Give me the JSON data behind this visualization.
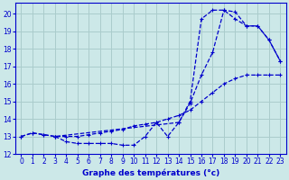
{
  "title": "Graphe des températures (°c)",
  "bg_color": "#cce8e8",
  "grid_color": "#aacccc",
  "line_color": "#0000cc",
  "xlim": [
    -0.5,
    23.5
  ],
  "ylim": [
    12,
    20.6
  ],
  "xticks": [
    0,
    1,
    2,
    3,
    4,
    5,
    6,
    7,
    8,
    9,
    10,
    11,
    12,
    13,
    14,
    15,
    16,
    17,
    18,
    19,
    20,
    21,
    22,
    23
  ],
  "yticks": [
    12,
    13,
    14,
    15,
    16,
    17,
    18,
    19,
    20
  ],
  "series1_x": [
    0,
    1,
    2,
    3,
    4,
    5,
    6,
    7,
    8,
    9,
    10,
    11,
    12,
    13,
    14,
    15,
    16,
    17,
    18,
    19,
    20,
    21,
    22,
    23
  ],
  "series1_y": [
    13.0,
    13.2,
    13.1,
    13.0,
    13.0,
    13.0,
    13.1,
    13.2,
    13.3,
    13.4,
    13.6,
    13.7,
    13.8,
    14.0,
    14.2,
    14.5,
    15.0,
    15.5,
    16.0,
    16.3,
    16.5,
    16.5,
    16.5,
    16.5
  ],
  "series2_x": [
    0,
    1,
    2,
    3,
    14,
    15,
    16,
    17,
    18,
    19,
    20,
    21,
    22,
    23
  ],
  "series2_y": [
    13.0,
    13.2,
    13.1,
    13.0,
    13.8,
    15.0,
    19.7,
    20.2,
    20.2,
    19.7,
    19.3,
    19.3,
    18.5,
    17.3
  ],
  "series3_x": [
    3,
    4,
    5,
    6,
    7,
    8,
    9,
    10,
    11,
    12,
    13,
    14,
    15,
    16,
    17,
    18,
    19,
    20,
    21,
    22,
    23
  ],
  "series3_y": [
    13.0,
    12.7,
    12.6,
    12.6,
    12.6,
    12.6,
    12.5,
    12.5,
    13.0,
    13.8,
    13.0,
    13.8,
    14.9,
    16.5,
    17.8,
    20.2,
    20.1,
    19.3,
    19.3,
    18.5,
    17.3
  ]
}
